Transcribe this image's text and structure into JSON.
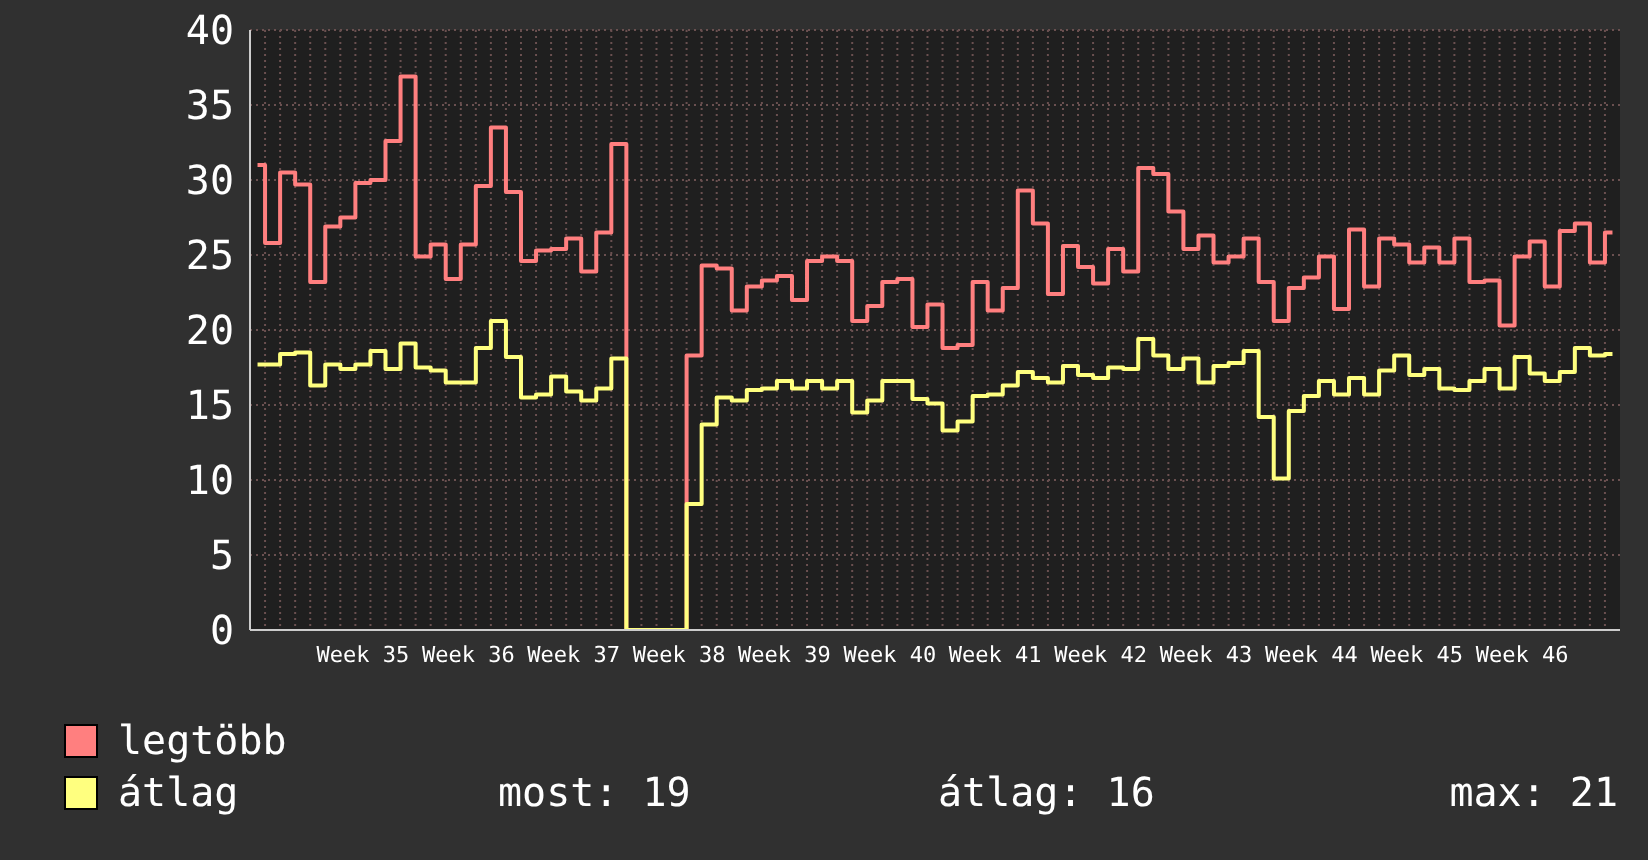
{
  "chart_data": {
    "type": "step",
    "categories": [
      null,
      null,
      null,
      null,
      null,
      null,
      null,
      "Week 35",
      null,
      null,
      null,
      null,
      null,
      null,
      "Week 36",
      null,
      null,
      null,
      null,
      null,
      null,
      "Week 37",
      null,
      null,
      null,
      null,
      null,
      null,
      "Week 38",
      null,
      null,
      null,
      null,
      null,
      null,
      "Week 39",
      null,
      null,
      null,
      null,
      null,
      null,
      "Week 40",
      null,
      null,
      null,
      null,
      null,
      null,
      "Week 41",
      null,
      null,
      null,
      null,
      null,
      null,
      "Week 42",
      null,
      null,
      null,
      null,
      null,
      null,
      "Week 43",
      null,
      null,
      null,
      null,
      null,
      null,
      "Week 44",
      null,
      null,
      null,
      null,
      null,
      null,
      "Week 45",
      null,
      null,
      null,
      null,
      null,
      null,
      "Week 46",
      null,
      null,
      null,
      null,
      null,
      null
    ],
    "series": [
      {
        "name": "legtöbb",
        "color": "#ff7f7f",
        "values": [
          31.0,
          25.8,
          30.5,
          29.7,
          23.2,
          26.9,
          27.5,
          29.8,
          30.0,
          32.6,
          36.9,
          24.9,
          25.7,
          23.4,
          25.7,
          29.6,
          33.5,
          29.2,
          24.6,
          25.3,
          25.4,
          26.1,
          23.9,
          26.5,
          32.4,
          0,
          0,
          0,
          0,
          18.3,
          24.3,
          24.1,
          21.3,
          22.9,
          23.3,
          23.6,
          22.0,
          24.6,
          24.9,
          24.6,
          20.6,
          21.6,
          23.2,
          23.4,
          20.2,
          21.7,
          18.8,
          19.0,
          23.2,
          21.3,
          22.8,
          29.3,
          27.1,
          22.4,
          25.6,
          24.2,
          23.1,
          25.4,
          23.9,
          30.8,
          30.4,
          27.9,
          25.4,
          26.3,
          24.5,
          24.9,
          26.1,
          23.2,
          20.6,
          22.8,
          23.5,
          24.9,
          21.4,
          26.7,
          22.9,
          26.1,
          25.7,
          24.5,
          25.5,
          24.5,
          26.1,
          23.2,
          23.3,
          20.3,
          24.9,
          25.9,
          22.9,
          26.6,
          27.1,
          24.5,
          26.5
        ]
      },
      {
        "name": "átlag",
        "color": "#ffff7f",
        "values": [
          17.7,
          17.7,
          18.4,
          18.5,
          16.3,
          17.7,
          17.4,
          17.7,
          18.6,
          17.4,
          19.1,
          17.5,
          17.3,
          16.5,
          16.5,
          18.8,
          20.6,
          18.2,
          15.5,
          15.7,
          16.9,
          15.9,
          15.3,
          16.1,
          18.1,
          0,
          0,
          0,
          0,
          8.4,
          13.7,
          15.5,
          15.3,
          16.0,
          16.1,
          16.6,
          16.1,
          16.6,
          16.1,
          16.6,
          14.5,
          15.3,
          16.6,
          16.6,
          15.4,
          15.1,
          13.3,
          13.9,
          15.6,
          15.7,
          16.3,
          17.2,
          16.8,
          16.5,
          17.6,
          17.0,
          16.8,
          17.5,
          17.4,
          19.4,
          18.3,
          17.4,
          18.1,
          16.5,
          17.6,
          17.8,
          18.6,
          14.2,
          10.1,
          14.6,
          15.6,
          16.6,
          15.7,
          16.8,
          15.7,
          17.3,
          18.3,
          17.0,
          17.4,
          16.1,
          16.0,
          16.6,
          17.4,
          16.1,
          18.2,
          17.1,
          16.6,
          17.2,
          18.8,
          18.3,
          18.4
        ]
      }
    ],
    "ylim": [
      0,
      40
    ],
    "yticks": [
      0,
      5,
      10,
      15,
      20,
      25,
      30,
      35,
      40
    ],
    "grid": true,
    "legend": "bottom left",
    "annotations": [
      "most: 19",
      "átlag: 16",
      "max: 21"
    ]
  }
}
